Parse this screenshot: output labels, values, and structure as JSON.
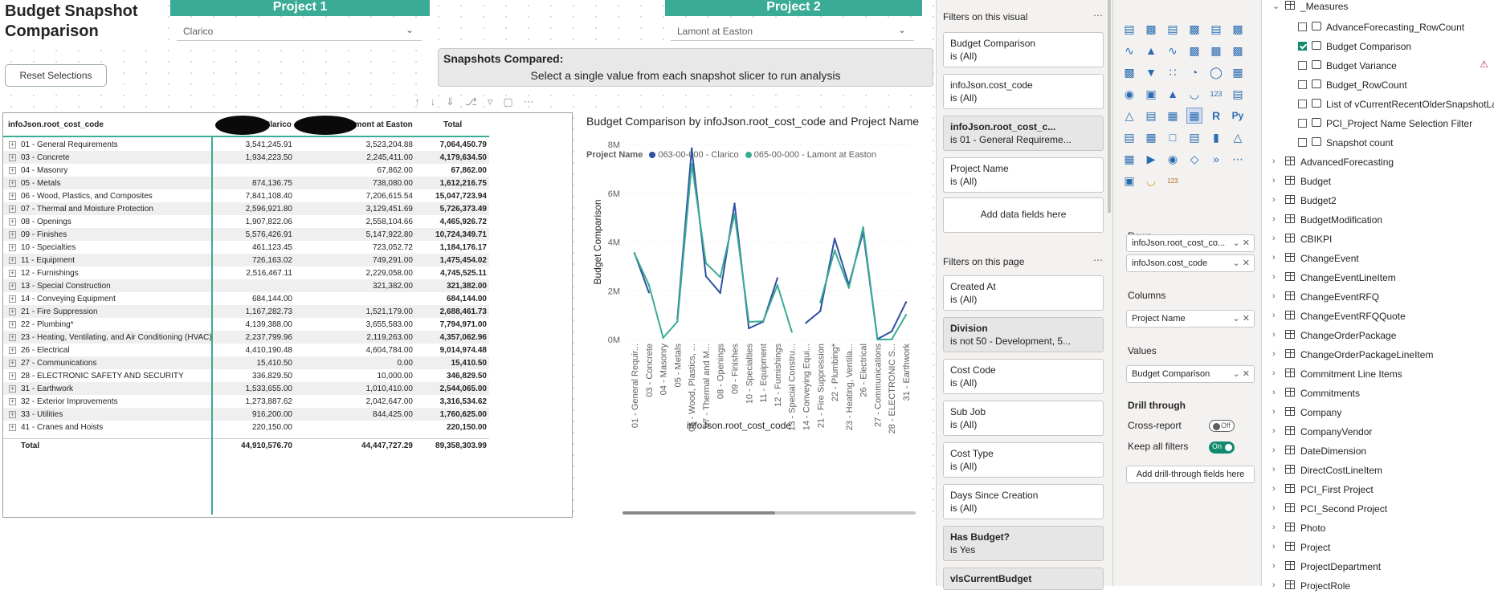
{
  "report": {
    "title": "Budget Snapshot Comparison",
    "reset_button": "Reset Selections",
    "project1": {
      "header": "Project 1",
      "selected": "Clarico"
    },
    "project2": {
      "header": "Project 2",
      "selected": "Lamont at Easton"
    },
    "snapshots": {
      "title": "Snapshots Compared:",
      "message": "Select a single value from each snapshot slicer to run analysis"
    }
  },
  "matrix": {
    "headers": {
      "code": "infoJson.root_cost_code",
      "col1": "Clarico",
      "col2": "amont at Easton",
      "total": "Total"
    },
    "rows": [
      {
        "label": "01 - General Requirements",
        "v1": "3,541,245.91",
        "v2": "3,523,204.88",
        "total": "7,064,450.79"
      },
      {
        "label": "03 - Concrete",
        "v1": "1,934,223.50",
        "v2": "2,245,411.00",
        "total": "4,179,634.50"
      },
      {
        "label": "04 - Masonry",
        "v1": "",
        "v2": "67,862.00",
        "total": "67,862.00"
      },
      {
        "label": "05 - Metals",
        "v1": "874,136.75",
        "v2": "738,080.00",
        "total": "1,612,216.75"
      },
      {
        "label": "06 - Wood, Plastics, and Composites",
        "v1": "7,841,108.40",
        "v2": "7,206,615.54",
        "total": "15,047,723.94"
      },
      {
        "label": "07 - Thermal and Moisture Protection",
        "v1": "2,596,921.80",
        "v2": "3,129,451.69",
        "total": "5,726,373.49"
      },
      {
        "label": "08 - Openings",
        "v1": "1,907,822.06",
        "v2": "2,558,104.66",
        "total": "4,465,926.72"
      },
      {
        "label": "09 - Finishes",
        "v1": "5,576,426.91",
        "v2": "5,147,922.80",
        "total": "10,724,349.71"
      },
      {
        "label": "10 - Specialties",
        "v1": "461,123.45",
        "v2": "723,052.72",
        "total": "1,184,176.17"
      },
      {
        "label": "11 - Equipment",
        "v1": "726,163.02",
        "v2": "749,291.00",
        "total": "1,475,454.02"
      },
      {
        "label": "12 - Furnishings",
        "v1": "2,516,467.11",
        "v2": "2,229,058.00",
        "total": "4,745,525.11"
      },
      {
        "label": "13 - Special Construction",
        "v1": "",
        "v2": "321,382.00",
        "total": "321,382.00"
      },
      {
        "label": "14 - Conveying Equipment",
        "v1": "684,144.00",
        "v2": "",
        "total": "684,144.00"
      },
      {
        "label": "21 - Fire Suppression",
        "v1": "1,167,282.73",
        "v2": "1,521,179.00",
        "total": "2,688,461.73"
      },
      {
        "label": "22 - Plumbing*",
        "v1": "4,139,388.00",
        "v2": "3,655,583.00",
        "total": "7,794,971.00"
      },
      {
        "label": "23 - Heating, Ventilating, and Air Conditioning (HVAC)",
        "v1": "2,237,799.96",
        "v2": "2,119,263.00",
        "total": "4,357,062.96"
      },
      {
        "label": "26 - Electrical",
        "v1": "4,410,190.48",
        "v2": "4,604,784.00",
        "total": "9,014,974.48"
      },
      {
        "label": "27 - Communications",
        "v1": "15,410.50",
        "v2": "0.00",
        "total": "15,410.50"
      },
      {
        "label": "28 - ELECTRONIC SAFETY AND SECURITY",
        "v1": "336,829.50",
        "v2": "10,000.00",
        "total": "346,829.50"
      },
      {
        "label": "31 - Earthwork",
        "v1": "1,533,655.00",
        "v2": "1,010,410.00",
        "total": "2,544,065.00"
      },
      {
        "label": "32 - Exterior Improvements",
        "v1": "1,273,887.62",
        "v2": "2,042,647.00",
        "total": "3,316,534.62"
      },
      {
        "label": "33 - Utilities",
        "v1": "916,200.00",
        "v2": "844,425.00",
        "total": "1,760,625.00"
      },
      {
        "label": "41 - Cranes and Hoists",
        "v1": "220,150.00",
        "v2": "",
        "total": "220,150.00"
      }
    ],
    "total_row": {
      "label": "Total",
      "v1": "44,910,576.70",
      "v2": "44,447,727.29",
      "total": "89,358,303.99"
    }
  },
  "chart_data": {
    "type": "line",
    "title": "Budget Comparison by infoJson.root_cost_code and Project Name",
    "legend_title": "Project Name",
    "xlabel": "infoJson.root_cost_code",
    "ylabel": "Budget Comparison",
    "yticks": [
      "0M",
      "2M",
      "4M",
      "6M",
      "8M"
    ],
    "ylim": [
      0,
      8000000
    ],
    "categories": [
      "01 - General Requir...",
      "03 - Concrete",
      "04 - Masonry",
      "05 - Metals",
      "06 - Wood, Plastics, ...",
      "07 - Thermal and M...",
      "08 - Openings",
      "09 - Finishes",
      "10 - Specialties",
      "11 - Equipment",
      "12 - Furnishings",
      "13 - Special Constru...",
      "14 - Conveying Equi...",
      "21 - Fire Suppression",
      "22 - Plumbing*",
      "23 - Heating, Ventila...",
      "26 - Electrical",
      "27 - Communications",
      "28 - ELECTRONIC S...",
      "31 - Earthwork"
    ],
    "series": [
      {
        "name": "063-00-000 - Clarico",
        "color": "#2f4fa1",
        "values": [
          3541245.91,
          1934223.5,
          null,
          874136.75,
          7841108.4,
          2596921.8,
          1907822.06,
          5576426.91,
          461123.45,
          726163.02,
          2516467.11,
          null,
          684144.0,
          1167282.73,
          4139388.0,
          2237799.96,
          4410190.48,
          15410.5,
          336829.5,
          1533655.0
        ]
      },
      {
        "name": "065-00-000 - Lamont at Easton",
        "color": "#3aab95",
        "values": [
          3523204.88,
          2245411.0,
          67862.0,
          738080.0,
          7206615.54,
          3129451.69,
          2558104.66,
          5147922.8,
          723052.72,
          749291.0,
          2229058.0,
          321382.0,
          null,
          1521179.0,
          3655583.0,
          2119263.0,
          4604784.0,
          0.0,
          10000.0,
          1010410.0
        ]
      }
    ]
  },
  "filters": {
    "visual_title": "Filters on this visual",
    "visual": [
      {
        "name": "Budget Comparison",
        "state": "is (All)",
        "bold": false,
        "dark": false
      },
      {
        "name": "infoJson.cost_code",
        "state": "is (All)",
        "bold": false,
        "dark": false
      },
      {
        "name": "infoJson.root_cost_c...",
        "state": "is 01 - General Requireme...",
        "bold": true,
        "dark": true
      },
      {
        "name": "Project Name",
        "state": "is (All)",
        "bold": false,
        "dark": false
      }
    ],
    "add_label": "Add data fields here",
    "page_title": "Filters on this page",
    "page": [
      {
        "name": "Created At",
        "state": "is (All)",
        "bold": false,
        "dark": false
      },
      {
        "name": "Division",
        "state": "is not 50 - Development, 5...",
        "bold": true,
        "dark": true
      },
      {
        "name": "Cost Code",
        "state": "is (All)",
        "bold": false,
        "dark": false
      },
      {
        "name": "Sub Job",
        "state": "is (All)",
        "bold": false,
        "dark": false
      },
      {
        "name": "Cost Type",
        "state": "is (All)",
        "bold": false,
        "dark": false
      },
      {
        "name": "Days Since Creation",
        "state": "is (All)",
        "bold": false,
        "dark": false
      },
      {
        "name": "Has Budget?",
        "state": "is Yes",
        "bold": true,
        "dark": true
      },
      {
        "name": "vlsCurrentBudget",
        "state": "",
        "bold": true,
        "dark": true
      }
    ]
  },
  "viz": {
    "rows_label": "Rows",
    "rows": [
      "infoJson.root_cost_co...",
      "infoJson.cost_code"
    ],
    "columns_label": "Columns",
    "columns": [
      "Project Name"
    ],
    "values_label": "Values",
    "values": [
      "Budget Comparison"
    ],
    "drill_label": "Drill through",
    "cross_report": "Cross-report",
    "cross_report_state": "Off",
    "keep_filters": "Keep all filters",
    "keep_filters_state": "On",
    "add_drill": "Add drill-through fields here"
  },
  "data_pane": {
    "measures_label": "_Measures",
    "measures": [
      {
        "name": "AdvanceForecasting_RowCount",
        "checked": false,
        "warn": false
      },
      {
        "name": "Budget Comparison",
        "checked": true,
        "warn": false
      },
      {
        "name": "Budget Variance",
        "checked": false,
        "warn": true
      },
      {
        "name": "Budget_RowCount",
        "checked": false,
        "warn": false
      },
      {
        "name": "List of vCurrentRecentOlderSnapshotLa...",
        "checked": false,
        "warn": false
      },
      {
        "name": "PCI_Project Name Selection Filter",
        "checked": false,
        "warn": false
      },
      {
        "name": "Snapshot count",
        "checked": false,
        "warn": false
      }
    ],
    "tables": [
      "AdvancedForecasting",
      "Budget",
      "Budget2",
      "BudgetModification",
      "CBIKPI",
      "ChangeEvent",
      "ChangeEventLineItem",
      "ChangeEventRFQ",
      "ChangeEventRFQQuote",
      "ChangeOrderPackage",
      "ChangeOrderPackageLineItem",
      "Commitment Line Items",
      "Commitments",
      "Company",
      "CompanyVendor",
      "DateDimension",
      "DirectCostLineItem",
      "PCI_First Project",
      "PCI_Second Project",
      "Photo",
      "Project",
      "ProjectDepartment",
      "ProjectRole"
    ]
  }
}
